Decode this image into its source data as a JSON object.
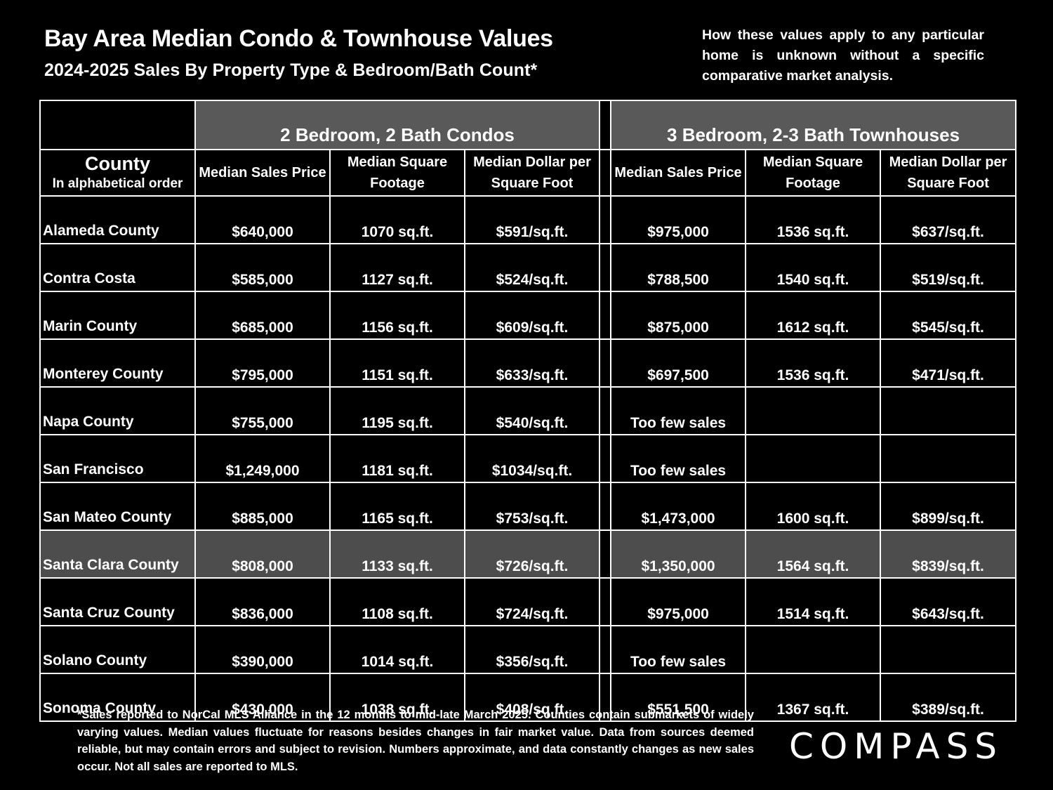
{
  "header": {
    "title": "Bay Area Median Condo & Townhouse Values",
    "subtitle": "2024-2025 Sales By Property Type & Bedroom/Bath Count*",
    "disclaimer": "How these values apply to any particular home is unknown without a specific comparative market analysis."
  },
  "table": {
    "group_condos": "2 Bedroom, 2 Bath Condos",
    "group_townhouses": "3 Bedroom, 2-3 Bath Townhouses",
    "county_label": "County",
    "county_sub": "In alphabetical order",
    "columns": [
      "Median Sales Price",
      "Median Square Footage",
      "Median Dollar per Square Foot",
      "Median Sales Price",
      "Median Square Footage",
      "Median Dollar per Square Foot"
    ],
    "rows": [
      {
        "county": "Alameda County",
        "c_price": "$640,000",
        "c_sqft": "1070 sq.ft.",
        "c_ppsf": "$591/sq.ft.",
        "t_price": "$975,000",
        "t_sqft": "1536 sq.ft.",
        "t_ppsf": "$637/sq.ft."
      },
      {
        "county": "Contra Costa",
        "c_price": "$585,000",
        "c_sqft": "1127 sq.ft.",
        "c_ppsf": "$524/sq.ft.",
        "t_price": "$788,500",
        "t_sqft": "1540 sq.ft.",
        "t_ppsf": "$519/sq.ft."
      },
      {
        "county": "Marin County",
        "c_price": "$685,000",
        "c_sqft": "1156 sq.ft.",
        "c_ppsf": "$609/sq.ft.",
        "t_price": "$875,000",
        "t_sqft": "1612 sq.ft.",
        "t_ppsf": "$545/sq.ft."
      },
      {
        "county": "Monterey County",
        "c_price": "$795,000",
        "c_sqft": "1151 sq.ft.",
        "c_ppsf": "$633/sq.ft.",
        "t_price": "$697,500",
        "t_sqft": "1536 sq.ft.",
        "t_ppsf": "$471/sq.ft."
      },
      {
        "county": "Napa County",
        "c_price": "$755,000",
        "c_sqft": "1195 sq.ft.",
        "c_ppsf": "$540/sq.ft.",
        "t_price": "Too few sales",
        "t_sqft": "",
        "t_ppsf": ""
      },
      {
        "county": "San Francisco",
        "c_price": "$1,249,000",
        "c_sqft": "1181 sq.ft.",
        "c_ppsf": "$1034/sq.ft.",
        "t_price": "Too few sales",
        "t_sqft": "",
        "t_ppsf": ""
      },
      {
        "county": "San Mateo County",
        "c_price": "$885,000",
        "c_sqft": "1165 sq.ft.",
        "c_ppsf": "$753/sq.ft.",
        "t_price": "$1,473,000",
        "t_sqft": "1600 sq.ft.",
        "t_ppsf": "$899/sq.ft."
      },
      {
        "county": "Santa Clara County",
        "c_price": "$808,000",
        "c_sqft": "1133 sq.ft.",
        "c_ppsf": "$726/sq.ft.",
        "t_price": "$1,350,000",
        "t_sqft": "1564 sq.ft.",
        "t_ppsf": "$839/sq.ft."
      },
      {
        "county": "Santa Cruz County",
        "c_price": "$836,000",
        "c_sqft": "1108 sq.ft.",
        "c_ppsf": "$724/sq.ft.",
        "t_price": "$975,000",
        "t_sqft": "1514 sq.ft.",
        "t_ppsf": "$643/sq.ft."
      },
      {
        "county": "Solano County",
        "c_price": "$390,000",
        "c_sqft": "1014 sq.ft.",
        "c_ppsf": "$356/sq.ft.",
        "t_price": "Too few sales",
        "t_sqft": "",
        "t_ppsf": ""
      },
      {
        "county": "Sonoma County",
        "c_price": "$430,000",
        "c_sqft": "1038 sq.ft.",
        "c_ppsf": "$408/sq.ft.",
        "t_price": "$551,500",
        "t_sqft": "1367 sq.ft.",
        "t_ppsf": "$389/sq.ft."
      }
    ]
  },
  "footnote": "*Sales reported to NorCal MLS Alliance in the 12 months to mid-late March 2025. Counties contain submarkets of widely varying values. Median values fluctuate for reasons besides changes in fair market value. Data from sources deemed reliable, but may contain errors and subject to revision.  Numbers approximate, and data constantly changes as new sales occur. Not all sales are reported to MLS.",
  "logo": "COMPASS",
  "colors": {
    "background": "#000000",
    "band": "#595959",
    "highlight_row": "#4d4d4d",
    "text": "#ffffff"
  }
}
